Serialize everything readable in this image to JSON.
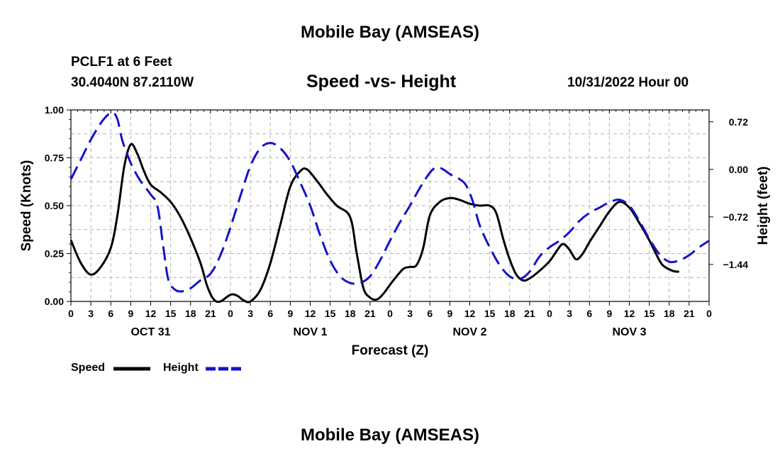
{
  "header": {
    "title": "Mobile Bay (AMSEAS)",
    "station": "PCLF1 at 6 Feet",
    "coords": "30.4040N  87.2110W",
    "subtitle": "Speed -vs- Height",
    "datetime": "10/31/2022 Hour 00",
    "bottom_title": "Mobile Bay (AMSEAS)"
  },
  "legend": {
    "speed_label": "Speed",
    "height_label": "Height"
  },
  "colors": {
    "speed": "#000000",
    "height": "#1414c8",
    "grid": "#b4b4b4"
  },
  "chart_data": {
    "type": "line",
    "title": "Speed -vs- Height",
    "xlabel": "Forecast (Z)",
    "ylabel_left": "Speed (Knots)",
    "ylabel_right": "Height (feet)",
    "x_range_hours": [
      0,
      96
    ],
    "x_tick_step_hours": 3,
    "x_tick_labels": [
      "0",
      "3",
      "6",
      "9",
      "12",
      "15",
      "18",
      "21",
      "0",
      "3",
      "6",
      "9",
      "12",
      "15",
      "18",
      "21",
      "0",
      "3",
      "6",
      "9",
      "12",
      "15",
      "18",
      "21",
      "0",
      "3",
      "6",
      "9",
      "12",
      "15",
      "18",
      "21",
      "0"
    ],
    "day_labels": [
      {
        "label": "OCT 31",
        "hour": 12
      },
      {
        "label": "NOV 1",
        "hour": 36
      },
      {
        "label": "NOV 2",
        "hour": 60
      },
      {
        "label": "NOV 3",
        "hour": 84
      }
    ],
    "left_axis": {
      "range": [
        0,
        1.0
      ],
      "ticks": [
        0.0,
        0.25,
        0.5,
        0.75,
        1.0
      ],
      "tick_labels": [
        "0.00",
        "0.25",
        "0.50",
        "0.75",
        "1.00"
      ]
    },
    "right_axis": {
      "range": [
        -2.0,
        0.9
      ],
      "ticks": [
        -1.44,
        -0.72,
        0.0,
        0.72
      ],
      "tick_labels": [
        "−1.44",
        "−0.72",
        "0.00",
        "0.72"
      ]
    },
    "grid": true,
    "series": [
      {
        "name": "Speed",
        "axis": "left",
        "style": "solid",
        "points": [
          [
            0,
            0.32
          ],
          [
            1.5,
            0.2
          ],
          [
            3,
            0.14
          ],
          [
            4.5,
            0.18
          ],
          [
            6,
            0.28
          ],
          [
            7,
            0.45
          ],
          [
            8,
            0.7
          ],
          [
            9,
            0.82
          ],
          [
            10,
            0.77
          ],
          [
            11,
            0.68
          ],
          [
            12,
            0.61
          ],
          [
            13.5,
            0.57
          ],
          [
            15,
            0.52
          ],
          [
            16.5,
            0.44
          ],
          [
            18,
            0.33
          ],
          [
            19.5,
            0.2
          ],
          [
            20.5,
            0.08
          ],
          [
            21.5,
            0.01
          ],
          [
            22.5,
            0.0
          ],
          [
            24,
            0.035
          ],
          [
            25,
            0.03
          ],
          [
            26,
            0.005
          ],
          [
            27,
            0.0
          ],
          [
            28.5,
            0.06
          ],
          [
            30,
            0.2
          ],
          [
            31.5,
            0.4
          ],
          [
            33,
            0.6
          ],
          [
            34.5,
            0.68
          ],
          [
            35.5,
            0.69
          ],
          [
            37,
            0.63
          ],
          [
            38.5,
            0.56
          ],
          [
            40,
            0.5
          ],
          [
            42,
            0.44
          ],
          [
            43,
            0.25
          ],
          [
            44,
            0.07
          ],
          [
            45,
            0.02
          ],
          [
            46,
            0.01
          ],
          [
            47,
            0.04
          ],
          [
            48.5,
            0.11
          ],
          [
            50,
            0.17
          ],
          [
            51,
            0.18
          ],
          [
            52,
            0.19
          ],
          [
            53,
            0.28
          ],
          [
            54,
            0.45
          ],
          [
            55.5,
            0.52
          ],
          [
            57,
            0.54
          ],
          [
            58.5,
            0.53
          ],
          [
            60,
            0.51
          ],
          [
            61.5,
            0.5
          ],
          [
            63,
            0.5
          ],
          [
            64,
            0.46
          ],
          [
            65,
            0.33
          ],
          [
            66,
            0.22
          ],
          [
            67,
            0.14
          ],
          [
            68,
            0.11
          ],
          [
            69,
            0.12
          ],
          [
            70.5,
            0.16
          ],
          [
            72,
            0.21
          ],
          [
            73,
            0.26
          ],
          [
            74,
            0.3
          ],
          [
            75,
            0.27
          ],
          [
            76,
            0.22
          ],
          [
            77,
            0.25
          ],
          [
            78,
            0.31
          ],
          [
            79.5,
            0.39
          ],
          [
            81,
            0.47
          ],
          [
            82.5,
            0.52
          ],
          [
            84,
            0.49
          ],
          [
            85.5,
            0.41
          ],
          [
            87,
            0.32
          ],
          [
            88,
            0.25
          ],
          [
            89,
            0.19
          ],
          [
            90.5,
            0.16
          ],
          [
            91.5,
            0.155
          ]
        ]
      },
      {
        "name": "Height",
        "axis": "right",
        "style": "dashed",
        "points": [
          [
            0,
            -0.15
          ],
          [
            1.5,
            0.15
          ],
          [
            3,
            0.45
          ],
          [
            4.5,
            0.7
          ],
          [
            5.5,
            0.82
          ],
          [
            6.3,
            0.86
          ],
          [
            7,
            0.76
          ],
          [
            7.7,
            0.45
          ],
          [
            8.5,
            0.22
          ],
          [
            9.3,
            0.03
          ],
          [
            10.5,
            -0.18
          ],
          [
            12,
            -0.38
          ],
          [
            13,
            -0.55
          ],
          [
            13.8,
            -1.1
          ],
          [
            14.6,
            -1.65
          ],
          [
            15.4,
            -1.8
          ],
          [
            16.5,
            -1.85
          ],
          [
            18,
            -1.8
          ],
          [
            19.5,
            -1.68
          ],
          [
            21,
            -1.58
          ],
          [
            22.5,
            -1.3
          ],
          [
            24,
            -0.88
          ],
          [
            25.5,
            -0.4
          ],
          [
            27,
            0.05
          ],
          [
            28.5,
            0.32
          ],
          [
            30,
            0.4
          ],
          [
            31.5,
            0.32
          ],
          [
            33,
            0.12
          ],
          [
            34.5,
            -0.2
          ],
          [
            36,
            -0.55
          ],
          [
            37.5,
            -1.0
          ],
          [
            39,
            -1.38
          ],
          [
            40.5,
            -1.62
          ],
          [
            42,
            -1.72
          ],
          [
            43.5,
            -1.72
          ],
          [
            45,
            -1.62
          ],
          [
            46.5,
            -1.38
          ],
          [
            48,
            -1.08
          ],
          [
            49.5,
            -0.8
          ],
          [
            51,
            -0.55
          ],
          [
            52.5,
            -0.28
          ],
          [
            54,
            -0.05
          ],
          [
            55,
            0.03
          ],
          [
            56,
            0.0
          ],
          [
            57,
            -0.07
          ],
          [
            58.5,
            -0.15
          ],
          [
            59.5,
            -0.25
          ],
          [
            60.5,
            -0.5
          ],
          [
            61.5,
            -0.85
          ],
          [
            63,
            -1.18
          ],
          [
            64.5,
            -1.45
          ],
          [
            66,
            -1.62
          ],
          [
            67.5,
            -1.66
          ],
          [
            69,
            -1.55
          ],
          [
            70.5,
            -1.32
          ],
          [
            72,
            -1.18
          ],
          [
            73.5,
            -1.08
          ],
          [
            75,
            -0.95
          ],
          [
            76.5,
            -0.78
          ],
          [
            78,
            -0.66
          ],
          [
            79.5,
            -0.58
          ],
          [
            81,
            -0.5
          ],
          [
            82.5,
            -0.46
          ],
          [
            84,
            -0.55
          ],
          [
            85.5,
            -0.78
          ],
          [
            87,
            -1.05
          ],
          [
            88.5,
            -1.28
          ],
          [
            90,
            -1.4
          ],
          [
            91.5,
            -1.38
          ],
          [
            93,
            -1.3
          ],
          [
            94.5,
            -1.18
          ],
          [
            96,
            -1.08
          ]
        ]
      }
    ]
  }
}
